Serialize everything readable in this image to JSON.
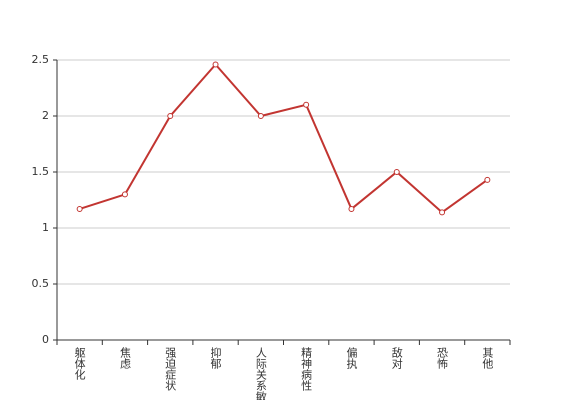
{
  "chart_data": {
    "type": "line",
    "categories": [
      "躯体化",
      "焦虑",
      "强迫症状",
      "抑郁",
      "人际关系敏感",
      "精神病性",
      "偏执",
      "敌对",
      "恐怖",
      "其他"
    ],
    "values": [
      1.17,
      1.3,
      2.0,
      2.46,
      2.0,
      2.1,
      1.17,
      1.5,
      1.14,
      1.43
    ],
    "color": "#c23531",
    "ylim": [
      0,
      2.5
    ],
    "yticks": [
      0,
      0.5,
      1,
      1.5,
      2,
      2.5
    ],
    "grid": true
  }
}
